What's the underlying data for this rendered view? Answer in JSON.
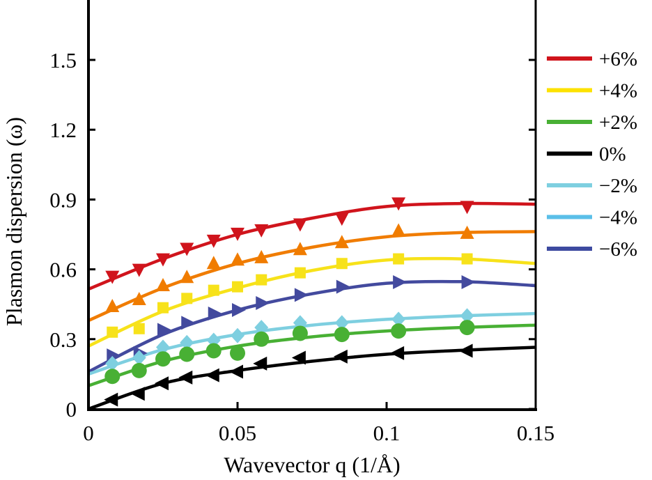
{
  "chart_data": {
    "type": "line",
    "xlabel": "Wavevector q (1/Å)",
    "ylabel": "Plasmon dispersion (ω)",
    "xlim": [
      0,
      0.15
    ],
    "ylim": [
      0,
      1.75
    ],
    "xticks": [
      0,
      0.05,
      0.1,
      0.15
    ],
    "xtick_labels": [
      "0",
      "0.05",
      "0.1",
      "0.15"
    ],
    "yticks": [
      0,
      0.3,
      0.6,
      0.9,
      1.2,
      1.5
    ],
    "ytick_labels": [
      "0",
      "0.3",
      "0.6",
      "0.9",
      "1.2",
      "1.5"
    ],
    "grid": false,
    "legend_position": "right",
    "legend": [
      {
        "label": "+6%",
        "color": "#d0141c"
      },
      {
        "label": "+4%",
        "color": "#fde200"
      },
      {
        "label": "+2%",
        "color": "#48b034"
      },
      {
        "label": "0%",
        "color": "#000000"
      },
      {
        "label": "−2%",
        "color": "#7ecfe0"
      },
      {
        "label": "−4%",
        "color": "#5bbfe8"
      },
      {
        "label": "−6%",
        "color": "#3d4aa0"
      }
    ],
    "x_points": [
      0.008,
      0.017,
      0.025,
      0.033,
      0.042,
      0.05,
      0.058,
      0.071,
      0.085,
      0.104,
      0.127
    ],
    "x_curve": [
      0,
      0.025,
      0.05,
      0.075,
      0.1,
      0.125,
      0.15
    ],
    "series": [
      {
        "name": "red",
        "color": "#d0141c",
        "marker": "triangle-down",
        "values": [
          0.57,
          0.6,
          0.645,
          0.69,
          0.725,
          0.755,
          0.77,
          0.795,
          0.82,
          0.885,
          0.87
        ],
        "fit": [
          0.515,
          0.645,
          0.75,
          0.82,
          0.87,
          0.883,
          0.88
        ]
      },
      {
        "name": "orange",
        "color": "#f07c00",
        "marker": "triangle-up",
        "values": [
          0.44,
          0.47,
          0.53,
          0.565,
          0.625,
          0.64,
          0.65,
          0.685,
          0.715,
          0.765,
          0.755
        ],
        "fit": [
          0.38,
          0.52,
          0.625,
          0.695,
          0.74,
          0.758,
          0.762
        ]
      },
      {
        "name": "yellow",
        "color": "#f7e21a",
        "marker": "square",
        "values": [
          0.33,
          0.345,
          0.435,
          0.475,
          0.51,
          0.525,
          0.555,
          0.585,
          0.625,
          0.645,
          0.645
        ],
        "fit": [
          0.27,
          0.42,
          0.52,
          0.595,
          0.64,
          0.645,
          0.625
        ]
      },
      {
        "name": "blue",
        "color": "#434a9e",
        "marker": "triangle-right",
        "values": [
          0.23,
          0.24,
          0.34,
          0.37,
          0.41,
          0.425,
          0.455,
          0.49,
          0.525,
          0.545,
          0.545
        ],
        "fit": [
          0.16,
          0.32,
          0.425,
          0.495,
          0.54,
          0.547,
          0.53
        ]
      },
      {
        "name": "cyan",
        "color": "#7ecfe0",
        "marker": "diamond",
        "values": [
          0.195,
          0.22,
          0.265,
          0.285,
          0.295,
          0.315,
          0.35,
          0.37,
          0.37,
          0.385,
          0.4
        ],
        "fit": [
          0.15,
          0.255,
          0.32,
          0.36,
          0.385,
          0.4,
          0.41
        ]
      },
      {
        "name": "green",
        "color": "#48b034",
        "marker": "circle",
        "values": [
          0.14,
          0.165,
          0.215,
          0.235,
          0.25,
          0.24,
          0.3,
          0.325,
          0.32,
          0.335,
          0.35
        ],
        "fit": [
          0.1,
          0.205,
          0.27,
          0.31,
          0.335,
          0.35,
          0.36
        ]
      },
      {
        "name": "black",
        "color": "#000000",
        "marker": "triangle-left",
        "values": [
          0.04,
          0.065,
          0.11,
          0.135,
          0.145,
          0.16,
          0.195,
          0.22,
          0.225,
          0.24,
          0.25
        ],
        "fit": [
          0.0,
          0.11,
          0.165,
          0.205,
          0.235,
          0.252,
          0.265
        ]
      }
    ]
  }
}
